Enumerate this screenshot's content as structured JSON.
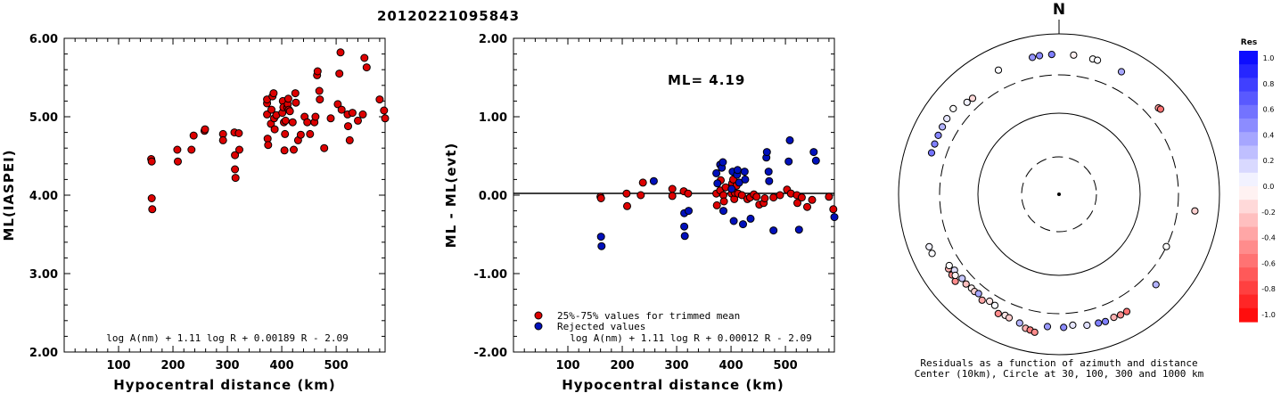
{
  "event_id": "20120221095843",
  "colors": {
    "accepted": "#dd0000",
    "rejected": "#0010bb",
    "edge": "#000000"
  },
  "chart_data": [
    {
      "type": "scatter",
      "ylabel": "ML(IASPEI)",
      "xlabel": "Hypocentral distance (km)",
      "xlim": [
        0,
        590
      ],
      "ylim": [
        2.0,
        6.0
      ],
      "xticks": [
        100,
        200,
        300,
        400,
        500
      ],
      "xtick_labels": [
        "100",
        "200",
        "300",
        "400",
        "500"
      ],
      "yticks": [
        2.0,
        3.0,
        4.0,
        5.0,
        6.0
      ],
      "ytick_labels": [
        "2.00",
        "3.00",
        "4.00",
        "5.00",
        "6.00"
      ],
      "formula": "log A(nm) + 1.11 log R + 0.00189 R - 2.09",
      "series": [
        {
          "points": [
            [
              160,
              4.46
            ],
            [
              161,
              4.43
            ],
            [
              161,
              3.96
            ],
            [
              162,
              3.82
            ],
            [
              208,
              4.58
            ],
            [
              209,
              4.43
            ],
            [
              234,
              4.58
            ],
            [
              238,
              4.76
            ],
            [
              258,
              4.82
            ],
            [
              259,
              4.84
            ],
            [
              292,
              4.78
            ],
            [
              292,
              4.7
            ],
            [
              313,
              4.8
            ],
            [
              314,
              4.51
            ],
            [
              314,
              4.33
            ],
            [
              315,
              4.22
            ],
            [
              321,
              4.79
            ],
            [
              322,
              4.58
            ],
            [
              373,
              5.17
            ],
            [
              373,
              5.22
            ],
            [
              373,
              5.03
            ],
            [
              374,
              4.72
            ],
            [
              375,
              4.64
            ],
            [
              380,
              4.91
            ],
            [
              381,
              5.09
            ],
            [
              383,
              5.26
            ],
            [
              385,
              5.3
            ],
            [
              386,
              4.98
            ],
            [
              387,
              4.84
            ],
            [
              390,
              5.02
            ],
            [
              401,
              5.05
            ],
            [
              402,
              5.2
            ],
            [
              403,
              5.12
            ],
            [
              404,
              4.93
            ],
            [
              405,
              4.57
            ],
            [
              406,
              4.78
            ],
            [
              407,
              4.95
            ],
            [
              410,
              5.12
            ],
            [
              411,
              5.16
            ],
            [
              412,
              5.23
            ],
            [
              413,
              5.09
            ],
            [
              415,
              5.07
            ],
            [
              420,
              4.93
            ],
            [
              422,
              4.58
            ],
            [
              425,
              5.3
            ],
            [
              426,
              5.18
            ],
            [
              430,
              4.7
            ],
            [
              435,
              4.77
            ],
            [
              442,
              5.0
            ],
            [
              447,
              4.93
            ],
            [
              452,
              4.78
            ],
            [
              460,
              4.93
            ],
            [
              462,
              5.0
            ],
            [
              465,
              5.53
            ],
            [
              466,
              5.58
            ],
            [
              469,
              5.33
            ],
            [
              470,
              5.22
            ],
            [
              478,
              4.6
            ],
            [
              490,
              4.98
            ],
            [
              503,
              5.16
            ],
            [
              506,
              5.55
            ],
            [
              508,
              5.82
            ],
            [
              510,
              5.09
            ],
            [
              521,
              5.03
            ],
            [
              522,
              4.88
            ],
            [
              525,
              4.7
            ],
            [
              530,
              5.05
            ],
            [
              540,
              4.95
            ],
            [
              549,
              5.03
            ],
            [
              552,
              5.75
            ],
            [
              556,
              5.63
            ],
            [
              580,
              5.22
            ],
            [
              588,
              5.08
            ],
            [
              590,
              4.98
            ]
          ]
        }
      ]
    },
    {
      "type": "scatter",
      "ylabel": "ML - ML(evt)",
      "xlabel": "Hypocentral distance (km)",
      "xlim": [
        0,
        590
      ],
      "ylim": [
        -2.0,
        2.0
      ],
      "xticks": [
        100,
        200,
        300,
        400,
        500
      ],
      "xtick_labels": [
        "100",
        "200",
        "300",
        "400",
        "500"
      ],
      "yticks": [
        -2.0,
        -1.0,
        0.0,
        1.0,
        2.0
      ],
      "ytick_labels": [
        "-2.00",
        "-1.00",
        "0.00",
        "1.00",
        "2.00"
      ],
      "ml_label": "ML= 4.19",
      "formula": "log A(nm) + 1.11 log R + 0.00012 R - 2.09",
      "zero_line": true,
      "series": [
        {
          "name": "25%-75% values for trimmed mean",
          "points": [
            [
              160,
              -0.02
            ],
            [
              161,
              -0.04
            ],
            [
              208,
              0.02
            ],
            [
              209,
              -0.14
            ],
            [
              234,
              0.0
            ],
            [
              238,
              0.16
            ],
            [
              292,
              0.08
            ],
            [
              292,
              -0.01
            ],
            [
              313,
              0.05
            ],
            [
              321,
              0.02
            ],
            [
              373,
              0.02
            ],
            [
              374,
              -0.13
            ],
            [
              380,
              0.06
            ],
            [
              381,
              0.19
            ],
            [
              386,
              0.0
            ],
            [
              387,
              -0.08
            ],
            [
              390,
              0.1
            ],
            [
              401,
              0.02
            ],
            [
              402,
              0.15
            ],
            [
              404,
              0.2
            ],
            [
              406,
              -0.05
            ],
            [
              407,
              0.03
            ],
            [
              410,
              0.12
            ],
            [
              413,
              0.02
            ],
            [
              420,
              0.0
            ],
            [
              430,
              -0.05
            ],
            [
              435,
              -0.03
            ],
            [
              442,
              0.01
            ],
            [
              447,
              -0.02
            ],
            [
              452,
              -0.12
            ],
            [
              460,
              -0.1
            ],
            [
              462,
              -0.04
            ],
            [
              478,
              -0.03
            ],
            [
              490,
              0.0
            ],
            [
              503,
              0.07
            ],
            [
              510,
              0.02
            ],
            [
              521,
              0.0
            ],
            [
              522,
              -0.1
            ],
            [
              530,
              -0.03
            ],
            [
              540,
              -0.15
            ],
            [
              549,
              -0.06
            ],
            [
              580,
              -0.02
            ],
            [
              588,
              -0.18
            ]
          ]
        },
        {
          "name": "Rejected values",
          "points": [
            [
              161,
              -0.53
            ],
            [
              162,
              -0.65
            ],
            [
              258,
              0.18
            ],
            [
              314,
              -0.23
            ],
            [
              314,
              -0.4
            ],
            [
              315,
              -0.52
            ],
            [
              322,
              -0.2
            ],
            [
              373,
              0.28
            ],
            [
              375,
              0.15
            ],
            [
              380,
              0.39
            ],
            [
              383,
              0.35
            ],
            [
              385,
              0.42
            ],
            [
              386,
              -0.2
            ],
            [
              401,
              0.08
            ],
            [
              403,
              0.3
            ],
            [
              405,
              -0.33
            ],
            [
              411,
              0.26
            ],
            [
              412,
              0.32
            ],
            [
              415,
              0.16
            ],
            [
              422,
              -0.37
            ],
            [
              425,
              0.3
            ],
            [
              426,
              0.2
            ],
            [
              436,
              -0.3
            ],
            [
              465,
              0.48
            ],
            [
              466,
              0.55
            ],
            [
              469,
              0.3
            ],
            [
              470,
              0.18
            ],
            [
              478,
              -0.45
            ],
            [
              506,
              0.43
            ],
            [
              508,
              0.7
            ],
            [
              525,
              -0.44
            ],
            [
              552,
              0.55
            ],
            [
              556,
              0.44
            ],
            [
              590,
              -0.28
            ]
          ]
        }
      ]
    },
    {
      "type": "polar_scatter",
      "north_label": "N",
      "caption_line1": "Residuals as a function of azimuth and distance",
      "caption_line2": "Center (10km), Circle at 30, 100, 300 and 1000 km",
      "colorbar": {
        "title": "Res",
        "tick_labels": [
          "1.0",
          "0.8",
          "0.6",
          "0.4",
          "0.2",
          "0.0",
          "-0.2",
          "-0.4",
          "-0.6",
          "-0.8",
          "-1.0"
        ],
        "min": -1.0,
        "max": 1.0
      },
      "stations": [
        {
          "azimuth": -72,
          "distance": 460,
          "residual": 0.55
        },
        {
          "azimuth": -68,
          "distance": 462,
          "residual": 0.5
        },
        {
          "azimuth": -64,
          "distance": 465,
          "residual": 0.48
        },
        {
          "azimuth": -60,
          "distance": 470,
          "residual": 0.3
        },
        {
          "azimuth": -56,
          "distance": 478,
          "residual": 0.1
        },
        {
          "azimuth": -51,
          "distance": 490,
          "residual": 0.0
        },
        {
          "azimuth": -45,
          "distance": 410,
          "residual": 0.05
        },
        {
          "azimuth": -42,
          "distance": 400,
          "residual": -0.15
        },
        {
          "azimuth": -26,
          "distance": 520,
          "residual": 0.02
        },
        {
          "azimuth": -11,
          "distance": 540,
          "residual": 0.42
        },
        {
          "azimuth": -8,
          "distance": 548,
          "residual": 0.46
        },
        {
          "azimuth": -3,
          "distance": 550,
          "residual": 0.5
        },
        {
          "azimuth": 6,
          "distance": 548,
          "residual": -0.06
        },
        {
          "azimuth": 14,
          "distance": 540,
          "residual": 0.0
        },
        {
          "azimuth": 16,
          "distance": 540,
          "residual": 0.02
        },
        {
          "azimuth": 27,
          "distance": 510,
          "residual": 0.35
        },
        {
          "azimuth": 49,
          "distance": 430,
          "residual": -0.4
        },
        {
          "azimuth": 50,
          "distance": 440,
          "residual": -0.55
        },
        {
          "azimuth": 97,
          "distance": 500,
          "residual": -0.18
        },
        {
          "azimuth": 116,
          "distance": 300,
          "residual": 0.0
        },
        {
          "azimuth": -115,
          "distance": 550,
          "residual": 0.02
        },
        {
          "azimuth": -112,
          "distance": 550,
          "residual": 0.05
        },
        {
          "azimuth": -127,
          "distance": 460,
          "residual": -0.45
        },
        {
          "azimuth": -124,
          "distance": 450,
          "residual": -0.3
        },
        {
          "azimuth": -130,
          "distance": 480,
          "residual": -0.45
        },
        {
          "azimuth": -126,
          "distance": 400,
          "residual": 0.12
        },
        {
          "azimuth": -128,
          "distance": 430,
          "residual": -0.05
        },
        {
          "azimuth": -123,
          "distance": 420,
          "residual": 0.0
        },
        {
          "azimuth": -131,
          "distance": 390,
          "residual": 0.22
        },
        {
          "azimuth": -134,
          "distance": 400,
          "residual": -0.25
        },
        {
          "azimuth": -137,
          "distance": 390,
          "residual": -0.05
        },
        {
          "azimuth": -139,
          "distance": 395,
          "residual": -0.18
        },
        {
          "azimuth": -141,
          "distance": 385,
          "residual": 0.35
        },
        {
          "azimuth": -144,
          "distance": 420,
          "residual": -0.35
        },
        {
          "azimuth": -147,
          "distance": 380,
          "residual": -0.1
        },
        {
          "azimuth": -150,
          "distance": 390,
          "residual": 0.02
        },
        {
          "azimuth": -153,
          "distance": 460,
          "residual": -0.45
        },
        {
          "azimuth": -156,
          "distance": 440,
          "residual": -0.1
        },
        {
          "azimuth": -158,
          "distance": 450,
          "residual": -0.2
        },
        {
          "azimuth": -163,
          "distance": 470,
          "residual": 0.3
        },
        {
          "azimuth": -166,
          "distance": 520,
          "residual": -0.3
        },
        {
          "azimuth": -168,
          "distance": 530,
          "residual": -0.5
        },
        {
          "azimuth": -170,
          "distance": 550,
          "residual": -0.45
        },
        {
          "azimuth": -175,
          "distance": 445,
          "residual": 0.4
        },
        {
          "azimuth": 178,
          "distance": 450,
          "residual": 0.45
        },
        {
          "azimuth": 174,
          "distance": 430,
          "residual": 0.1
        },
        {
          "azimuth": 168,
          "distance": 460,
          "residual": 0.12
        },
        {
          "azimuth": 163,
          "distance": 470,
          "residual": 0.5
        },
        {
          "azimuth": 160,
          "distance": 480,
          "residual": 0.5
        },
        {
          "azimuth": 156,
          "distance": 470,
          "residual": -0.3
        },
        {
          "azimuth": 153,
          "distance": 480,
          "residual": -0.45
        },
        {
          "azimuth": 150,
          "distance": 480,
          "residual": -0.55
        },
        {
          "azimuth": 133,
          "distance": 440,
          "residual": 0.3
        }
      ]
    }
  ]
}
